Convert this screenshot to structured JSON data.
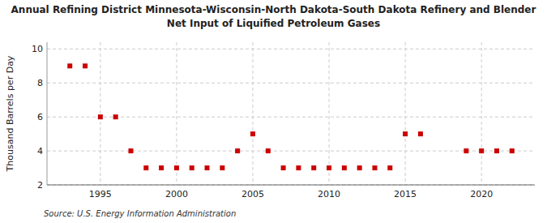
{
  "chart_data": {
    "type": "scatter",
    "title": "Annual Refining District Minnesota-Wisconsin-North Dakota-South Dakota Refinery and Blender",
    "subtitle": "Net Input of Liquified Petroleum Gases",
    "y_label": "Thousand Barrels per Day",
    "annotations": [
      "Source: U.S. Energy Information Administration"
    ],
    "x": [
      1993,
      1994,
      1995,
      1996,
      1997,
      1998,
      1999,
      2000,
      2001,
      2002,
      2003,
      2004,
      2005,
      2006,
      2007,
      2008,
      2009,
      2010,
      2011,
      2012,
      2013,
      2014,
      2015,
      2016,
      2019,
      2020,
      2021,
      2022
    ],
    "values": [
      9,
      9,
      6,
      6,
      4,
      3,
      3,
      3,
      3,
      3,
      3,
      4,
      5,
      4,
      3,
      3,
      3,
      3,
      3,
      3,
      3,
      3,
      5,
      5,
      4,
      4,
      4,
      4
    ],
    "color": "#cc0000",
    "marker": "square",
    "xlim": [
      1991.5,
      2023.5
    ],
    "ylim": [
      2,
      10.4
    ],
    "xticks": [
      1995,
      2000,
      2005,
      2010,
      2015,
      2020
    ],
    "yticks": [
      2,
      4,
      6,
      8,
      10
    ],
    "grid": true
  }
}
